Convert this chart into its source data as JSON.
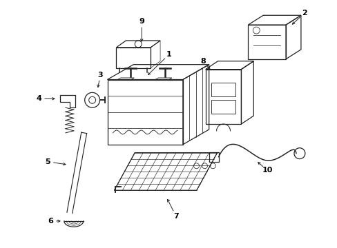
{
  "background_color": "#ffffff",
  "line_color": "#222222",
  "text_color": "#000000",
  "fig_width": 4.89,
  "fig_height": 3.6,
  "dpi": 100
}
